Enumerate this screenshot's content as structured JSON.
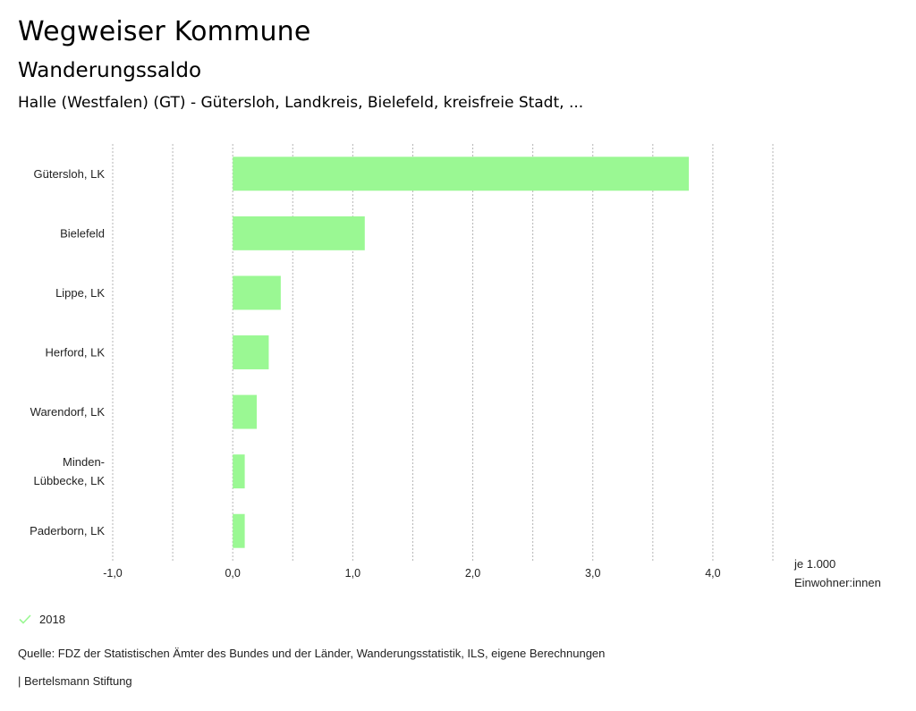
{
  "header": {
    "title": "Wegweiser Kommune",
    "subtitle": "Wanderungssaldo",
    "region": "Halle (Westfalen) (GT) - Gütersloh, Landkreis, Bielefeld, kreisfreie Stadt, ..."
  },
  "chart_data": {
    "type": "bar",
    "orientation": "horizontal",
    "title": "Wanderungssaldo",
    "categories": [
      "Gütersloh, LK",
      "Bielefeld",
      "Lippe, LK",
      "Herford, LK",
      "Warendorf, LK",
      "Minden-Lübbecke, LK",
      "Paderborn, LK"
    ],
    "category_lines": [
      [
        "Gütersloh, LK"
      ],
      [
        "Bielefeld"
      ],
      [
        "Lippe, LK"
      ],
      [
        "Herford, LK"
      ],
      [
        "Warendorf, LK"
      ],
      [
        "Minden-",
        "Lübbecke, LK"
      ],
      [
        "Paderborn, LK"
      ]
    ],
    "series": [
      {
        "name": "2018",
        "color": "#9af893",
        "values": [
          3.8,
          1.1,
          0.4,
          0.3,
          0.2,
          0.1,
          0.1
        ]
      }
    ],
    "xlim": [
      -1.0,
      4.5
    ],
    "xticks": [
      -1.0,
      0.0,
      1.0,
      2.0,
      3.0,
      4.0
    ],
    "xtick_labels": [
      "-1,0",
      "0,0",
      "1,0",
      "2,0",
      "3,0",
      "4,0"
    ],
    "gridlines": [
      -1.0,
      -0.5,
      0.0,
      0.5,
      1.0,
      1.5,
      2.0,
      2.5,
      3.0,
      3.5,
      4.0,
      4.5
    ],
    "grid": true,
    "xlabel": [
      "je 1.000",
      "Einwohner:innen"
    ],
    "ylabel": "",
    "legend_position": "bottom-left"
  },
  "legend": {
    "items": [
      {
        "label": "2018",
        "color": "#9af893",
        "icon": "check-icon"
      }
    ]
  },
  "footer": {
    "source": "Quelle: FDZ der Statistischen Ämter des Bundes und der Länder, Wanderungsstatistik, ILS, eigene Berechnungen",
    "credit": "| Bertelsmann Stiftung"
  }
}
